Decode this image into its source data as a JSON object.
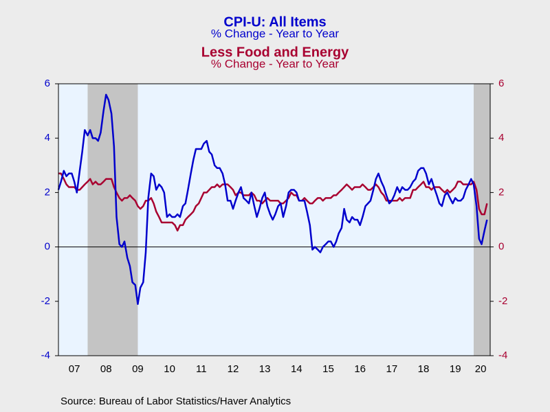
{
  "chart_data": {
    "type": "line",
    "title": "CPI-U: All Items",
    "subtitle": "% Change - Year to Year",
    "title2": "Less Food and Energy",
    "subtitle2": "% Change - Year to Year",
    "source": "Source:  Bureau of Labor Statistics/Haver Analytics",
    "xlim": [
      2007,
      2020.6
    ],
    "xticks": [
      {
        "value": 2007.5,
        "label": "07"
      },
      {
        "value": 2008.5,
        "label": "08"
      },
      {
        "value": 2009.5,
        "label": "09"
      },
      {
        "value": 2010.5,
        "label": "10"
      },
      {
        "value": 2011.5,
        "label": "11"
      },
      {
        "value": 2012.5,
        "label": "12"
      },
      {
        "value": 2013.5,
        "label": "13"
      },
      {
        "value": 2014.5,
        "label": "14"
      },
      {
        "value": 2015.5,
        "label": "15"
      },
      {
        "value": 2016.5,
        "label": "16"
      },
      {
        "value": 2017.5,
        "label": "17"
      },
      {
        "value": 2018.5,
        "label": "18"
      },
      {
        "value": 2019.5,
        "label": "19"
      },
      {
        "value": 2020.3,
        "label": "20"
      }
    ],
    "ylim": [
      -4,
      6
    ],
    "yticks": [
      -4,
      -2,
      0,
      2,
      4,
      6
    ],
    "y2lim": [
      -4,
      6
    ],
    "y2ticks": [
      -4,
      -2,
      0,
      2,
      4,
      6
    ],
    "recessions": [
      [
        2007.92,
        2009.5
      ],
      [
        2020.08,
        2020.6
      ]
    ],
    "x": [
      2007.0,
      2007.08,
      2007.17,
      2007.25,
      2007.33,
      2007.42,
      2007.5,
      2007.58,
      2007.67,
      2007.75,
      2007.83,
      2007.92,
      2008.0,
      2008.08,
      2008.17,
      2008.25,
      2008.33,
      2008.42,
      2008.5,
      2008.58,
      2008.67,
      2008.75,
      2008.83,
      2008.92,
      2009.0,
      2009.08,
      2009.17,
      2009.25,
      2009.33,
      2009.42,
      2009.5,
      2009.58,
      2009.67,
      2009.75,
      2009.83,
      2009.92,
      2010.0,
      2010.08,
      2010.17,
      2010.25,
      2010.33,
      2010.42,
      2010.5,
      2010.58,
      2010.67,
      2010.75,
      2010.83,
      2010.92,
      2011.0,
      2011.08,
      2011.17,
      2011.25,
      2011.33,
      2011.42,
      2011.5,
      2011.58,
      2011.67,
      2011.75,
      2011.83,
      2011.92,
      2012.0,
      2012.08,
      2012.17,
      2012.25,
      2012.33,
      2012.42,
      2012.5,
      2012.58,
      2012.67,
      2012.75,
      2012.83,
      2012.92,
      2013.0,
      2013.08,
      2013.17,
      2013.25,
      2013.33,
      2013.42,
      2013.5,
      2013.58,
      2013.67,
      2013.75,
      2013.83,
      2013.92,
      2014.0,
      2014.08,
      2014.17,
      2014.25,
      2014.33,
      2014.42,
      2014.5,
      2014.58,
      2014.67,
      2014.75,
      2014.83,
      2014.92,
      2015.0,
      2015.08,
      2015.17,
      2015.25,
      2015.33,
      2015.42,
      2015.5,
      2015.58,
      2015.67,
      2015.75,
      2015.83,
      2015.92,
      2016.0,
      2016.08,
      2016.17,
      2016.25,
      2016.33,
      2016.42,
      2016.5,
      2016.58,
      2016.67,
      2016.75,
      2016.83,
      2016.92,
      2017.0,
      2017.08,
      2017.17,
      2017.25,
      2017.33,
      2017.42,
      2017.5,
      2017.58,
      2017.67,
      2017.75,
      2017.83,
      2017.92,
      2018.0,
      2018.08,
      2018.17,
      2018.25,
      2018.33,
      2018.42,
      2018.5,
      2018.58,
      2018.67,
      2018.75,
      2018.83,
      2018.92,
      2019.0,
      2019.08,
      2019.17,
      2019.25,
      2019.33,
      2019.42,
      2019.5,
      2019.58,
      2019.67,
      2019.75,
      2019.83,
      2019.92,
      2020.0,
      2020.08,
      2020.17,
      2020.25,
      2020.33,
      2020.42,
      2020.5
    ],
    "series": [
      {
        "name": "CPI-U: All Items",
        "color": "#0000cc",
        "values": [
          2.1,
          2.4,
          2.8,
          2.6,
          2.7,
          2.7,
          2.4,
          2.0,
          2.8,
          3.5,
          4.3,
          4.1,
          4.3,
          4.0,
          4.0,
          3.9,
          4.2,
          5.0,
          5.6,
          5.4,
          4.9,
          3.7,
          1.1,
          0.1,
          0.0,
          0.2,
          -0.4,
          -0.7,
          -1.3,
          -1.4,
          -2.1,
          -1.5,
          -1.3,
          -0.2,
          1.8,
          2.7,
          2.6,
          2.1,
          2.3,
          2.2,
          2.0,
          1.1,
          1.2,
          1.1,
          1.1,
          1.2,
          1.1,
          1.5,
          1.6,
          2.1,
          2.7,
          3.2,
          3.6,
          3.6,
          3.6,
          3.8,
          3.9,
          3.5,
          3.4,
          3.0,
          2.9,
          2.9,
          2.7,
          2.3,
          1.7,
          1.7,
          1.4,
          1.7,
          2.0,
          2.2,
          1.8,
          1.7,
          1.6,
          2.0,
          1.5,
          1.1,
          1.4,
          1.8,
          2.0,
          1.5,
          1.2,
          1.0,
          1.2,
          1.5,
          1.6,
          1.1,
          1.5,
          2.0,
          2.1,
          2.1,
          2.0,
          1.7,
          1.7,
          1.7,
          1.3,
          0.8,
          -0.1,
          0.0,
          -0.1,
          -0.2,
          0.0,
          0.1,
          0.2,
          0.2,
          0.0,
          0.2,
          0.5,
          0.7,
          1.4,
          1.0,
          0.9,
          1.1,
          1.0,
          1.0,
          0.8,
          1.1,
          1.5,
          1.6,
          1.7,
          2.1,
          2.5,
          2.7,
          2.4,
          2.2,
          1.9,
          1.6,
          1.7,
          1.9,
          2.2,
          2.0,
          2.2,
          2.1,
          2.1,
          2.2,
          2.4,
          2.5,
          2.8,
          2.9,
          2.9,
          2.7,
          2.3,
          2.5,
          2.2,
          1.9,
          1.6,
          1.5,
          1.9,
          2.0,
          1.8,
          1.6,
          1.8,
          1.7,
          1.7,
          1.8,
          2.1,
          2.3,
          2.5,
          2.3,
          1.5,
          0.3,
          0.1,
          0.6,
          1.0
        ]
      },
      {
        "name": "Less Food and Energy",
        "color": "#a80030",
        "axis": "y2",
        "values": [
          2.7,
          2.7,
          2.5,
          2.3,
          2.2,
          2.2,
          2.2,
          2.1,
          2.1,
          2.2,
          2.3,
          2.4,
          2.5,
          2.3,
          2.4,
          2.3,
          2.3,
          2.4,
          2.5,
          2.5,
          2.5,
          2.2,
          2.0,
          1.8,
          1.7,
          1.8,
          1.8,
          1.9,
          1.8,
          1.7,
          1.5,
          1.4,
          1.5,
          1.7,
          1.7,
          1.8,
          1.6,
          1.3,
          1.1,
          0.9,
          0.9,
          0.9,
          0.9,
          0.9,
          0.8,
          0.6,
          0.8,
          0.8,
          1.0,
          1.1,
          1.2,
          1.3,
          1.5,
          1.6,
          1.8,
          2.0,
          2.0,
          2.1,
          2.2,
          2.2,
          2.3,
          2.2,
          2.3,
          2.3,
          2.3,
          2.2,
          2.1,
          1.9,
          2.0,
          2.0,
          1.9,
          1.9,
          1.9,
          2.0,
          1.9,
          1.7,
          1.7,
          1.6,
          1.7,
          1.8,
          1.7,
          1.7,
          1.7,
          1.7,
          1.6,
          1.6,
          1.7,
          1.8,
          2.0,
          1.9,
          1.9,
          1.7,
          1.7,
          1.8,
          1.7,
          1.6,
          1.6,
          1.7,
          1.8,
          1.8,
          1.7,
          1.8,
          1.8,
          1.8,
          1.9,
          1.9,
          2.0,
          2.1,
          2.2,
          2.3,
          2.2,
          2.1,
          2.2,
          2.2,
          2.2,
          2.3,
          2.2,
          2.1,
          2.1,
          2.2,
          2.3,
          2.2,
          2.0,
          1.9,
          1.7,
          1.7,
          1.7,
          1.7,
          1.7,
          1.8,
          1.7,
          1.8,
          1.8,
          1.8,
          2.1,
          2.1,
          2.2,
          2.3,
          2.4,
          2.2,
          2.2,
          2.1,
          2.2,
          2.2,
          2.2,
          2.1,
          2.0,
          2.1,
          2.0,
          2.1,
          2.2,
          2.4,
          2.4,
          2.3,
          2.3,
          2.3,
          2.3,
          2.4,
          2.1,
          1.4,
          1.2,
          1.2,
          1.6
        ]
      }
    ]
  }
}
